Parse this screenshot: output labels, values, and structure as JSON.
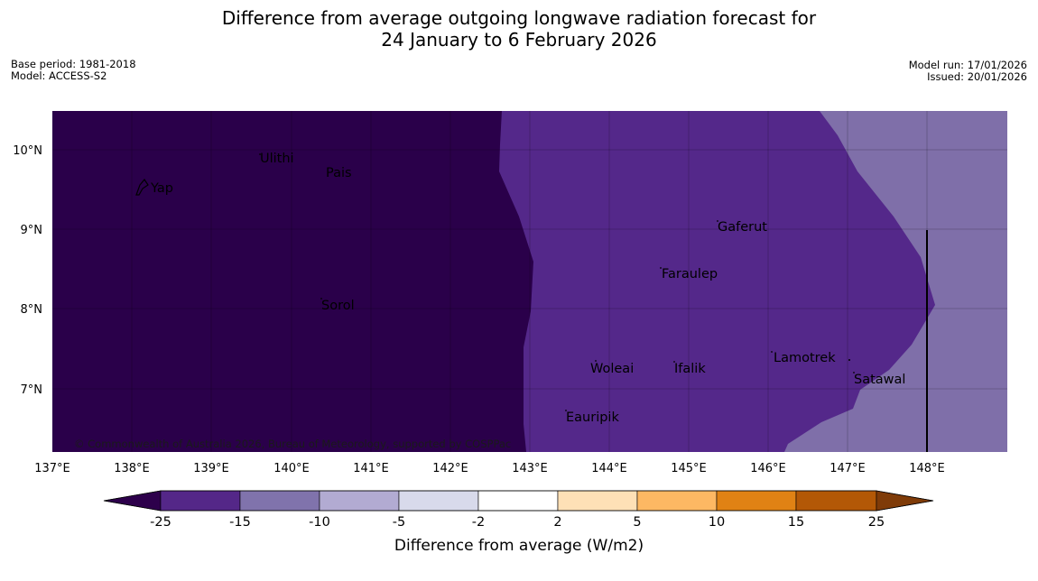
{
  "title_line1": "Difference from average outgoing longwave radiation forecast for",
  "title_line2": "24 January to 6 February 2026",
  "base_period": "Base period: 1981-2018",
  "model": "Model: ACCESS-S2",
  "model_run": "Model run: 17/01/2026",
  "issued": "Issued: 20/01/2026",
  "copyright": "© Commonwealth of Australia 2026, Bureau of Meteorology, supported by COSPPac",
  "colors": {
    "dark": "#2a004a",
    "mid": "#54288a",
    "light": "#7f6fa9"
  },
  "lon_ticks": [
    "137°E",
    "138°E",
    "139°E",
    "140°E",
    "141°E",
    "142°E",
    "143°E",
    "144°E",
    "145°E",
    "146°E",
    "147°E",
    "148°E"
  ],
  "lat_ticks": [
    "10°N",
    "9°N",
    "8°N",
    "7°N"
  ],
  "places": [
    "Ulithi",
    "Pais",
    "Yap",
    "Gaferut",
    "Faraulep",
    "Sorol",
    "Lamotrek",
    "Woleai",
    "Ifalik",
    "Satawal",
    "Eauripik"
  ],
  "colorbar": {
    "title": "Difference from average (W/m2)",
    "labels": [
      "-25",
      "-15",
      "-10",
      "-5",
      "-2",
      "2",
      "5",
      "10",
      "15",
      "25"
    ],
    "colors": [
      "#2d004b",
      "#542788",
      "#8073ac",
      "#b2abd2",
      "#d8daeb",
      "#ffffff",
      "#fee0b6",
      "#fdb863",
      "#e08214",
      "#b35806",
      "#7f3b08"
    ]
  }
}
